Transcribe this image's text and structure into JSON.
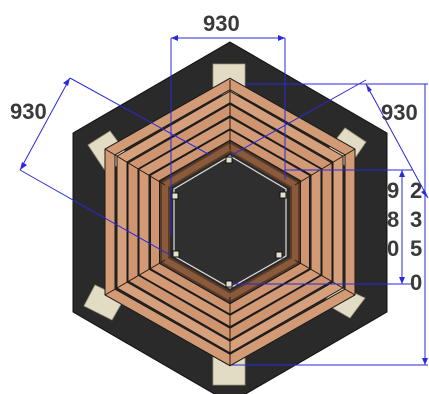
{
  "drawing": {
    "dimensions": {
      "top_width": "930",
      "left_width": "930",
      "right_width": "930",
      "inner_vertical_col1": [
        "9",
        "8",
        "0"
      ],
      "inner_vertical_col2": [
        "2",
        "3",
        "5",
        "0"
      ]
    },
    "colors": {
      "dimension_line": "#2a2ad8",
      "dimension_text": "#3a3a3a",
      "base": "#2a2a2a",
      "wood": "#d39a76",
      "wood_dark": "#8a5a3c",
      "pad": "#e3dcc4"
    }
  }
}
